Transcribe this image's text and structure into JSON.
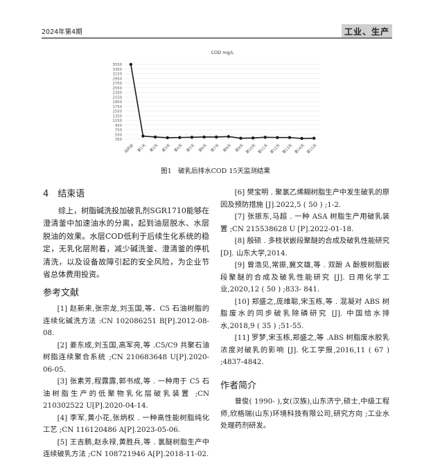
{
  "header": {
    "issue": "2024年第4期",
    "section": "工业、生产"
  },
  "chart_data": {
    "type": "line",
    "title": "COD mg/L",
    "xlabel": "",
    "ylabel": "",
    "categories": [
      "加药前",
      "第1天",
      "第2天",
      "第3天",
      "第4天",
      "第5天",
      "第6天",
      "第7天",
      "第8天",
      "第9天",
      "第10天",
      "第11天",
      "第12天",
      "第13天",
      "第14天",
      "第15天"
    ],
    "values": [
      3550,
      480,
      440,
      410,
      420,
      430,
      440,
      440,
      460,
      390,
      400,
      430,
      420,
      420,
      380,
      390
    ],
    "ylim": [
      350,
      3550
    ],
    "yticks": [
      3550,
      3350,
      3150,
      2950,
      2750,
      2550,
      2350,
      2150,
      1950,
      1750,
      1550,
      1350,
      1150,
      950,
      750,
      550,
      350
    ],
    "grid": true,
    "color": "#1a1a1a"
  },
  "figure_caption": "图1　破乳后排水COD 15天监测结果",
  "conclusion": {
    "heading": "4　结束语",
    "text": "综上，树脂碱洗投加破乳剂SGR1710能够在澄清釜中加速油水的分离，起到油层脱水、水层脱油的效果。水层COD低利于后续生化系统的稳定，无乳化层附着，减少碱洗釜、澄清釜的停机清洗，以及设备故障引起的安全风险，为企业节省总体费用投资。"
  },
  "references": {
    "heading": "参考文献",
    "items": [
      "[1] 赵新来,张宗龙,刘玉国,等．C5 石油树脂的连续化碱洗方法 :CN 102086251 B[P].2012-08-08.",
      "[2] 姜东成,刘玉国,高军亮,等 .C5/C9 共聚石油树脂连续聚合系统 ;CN 210683648 U[P].2020-06-05.",
      "[3] 张素芳,程露露,郭书成,等 . 一种用于 C5 石油树脂生产的低聚物乳化层破乳装置 ;CN 210302522 U[P].2020-04-14.",
      "[4] 李军,黄小花,张炳权 . 一种高性能树脂纯化工艺 ;CN 116120486 A[P].2023-05-06.",
      "[5] 王吉鹏,赵永禄,黄胜兵,等 . 氯醚树脂生产中连续破乳方法 ;CN 108721946 A[P].2018-11-02.",
      "[6] 樊宝明 . 聚氯乙烯糊树脂生产中发生破乳的原因及预防措施 [J].2022,5 ( 50 ) ;1-2.",
      "[7] 张振东,马超 . 一种 ASA 树脂生产用破乳装置 ;CN 215538628 U [P].2022-01-18.",
      "[8] 殷硕 . 多枝状嵌段聚醚的合成及破乳性能研究 [D]. 山东大学,2014.",
      "[9] 曾浩见,常振,冀文雄,等 . 双酚 A 酚胺树脂嵌段聚醚的合成及破乳性能研究 [J]. 日用化学工业,2020,12 ( 50 ) ;833- 841.",
      "[10] 郑盛之,庞维聪,宋玉栋,等 . 混凝对 ABS 树脂废水的同步破乳除磷研究 [J]. 中国给水排 水,2018,9 ( 35 ) ;51-55.",
      "[11] 罗梦,宋玉栋,郑盛之,等 .ABS 树脂废水胶乳浓度对破乳的影响 [J]. 化工学报,2016,11 ( 67 ) ;4837-4842."
    ]
  },
  "author": {
    "heading": "作者简介",
    "text": "曾俊( 1990- ),女(汉族),山东济宁,硕士,中级工程师,欣格瑞(山东)环境科技有限公司,研究方向 ;工业水处理药剂研发。"
  }
}
